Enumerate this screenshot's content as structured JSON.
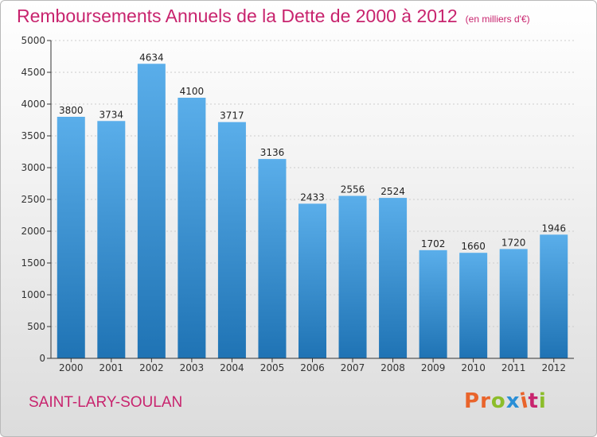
{
  "header": {
    "title": "Remboursements Annuels de la Dette de 2000 à 2012",
    "unit_note": "(en milliers d'€)"
  },
  "footer": {
    "town": "SAINT-LARY-SOULAN",
    "brand": "Proxiti",
    "brand_colors": [
      "#e9642b",
      "#e9642b",
      "#8cbd2a",
      "#2a8fd6",
      "#e9642b",
      "#c8246e",
      "#8cbd2a"
    ]
  },
  "colors": {
    "title": "#c8246e",
    "bar_top": "#5aaeea",
    "bar_bottom": "#1f73b4",
    "axis": "#333333",
    "grid": "#cccccc"
  },
  "chart_data": {
    "type": "bar",
    "title": "Remboursements Annuels de la Dette de 2000 à 2012",
    "subtitle": "(en milliers d'€)",
    "xlabel": "",
    "ylabel": "",
    "categories": [
      "2000",
      "2001",
      "2002",
      "2003",
      "2004",
      "2005",
      "2006",
      "2007",
      "2008",
      "2009",
      "2010",
      "2011",
      "2012"
    ],
    "values": [
      3800,
      3734,
      4634,
      4100,
      3717,
      3136,
      2433,
      2556,
      2524,
      1702,
      1660,
      1720,
      1946
    ],
    "ylim": [
      0,
      5000
    ],
    "yticks": [
      0,
      500,
      1000,
      1500,
      2000,
      2500,
      3000,
      3500,
      4000,
      4500,
      5000
    ],
    "grid": true,
    "legend": "none",
    "data_labels": true
  }
}
